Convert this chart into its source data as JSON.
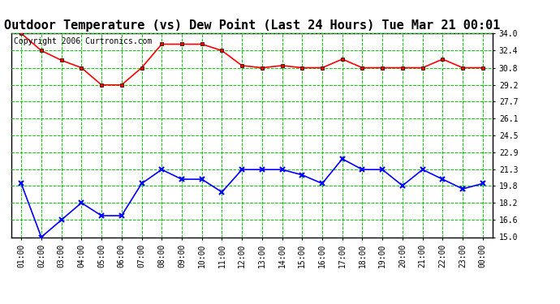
{
  "title": "Outdoor Temperature (vs) Dew Point (Last 24 Hours) Tue Mar 21 00:01",
  "copyright": "Copyright 2006 Curtronics.com",
  "x_labels": [
    "01:00",
    "02:00",
    "03:00",
    "04:00",
    "05:00",
    "06:00",
    "07:00",
    "08:00",
    "09:00",
    "10:00",
    "11:00",
    "12:00",
    "13:00",
    "14:00",
    "15:00",
    "16:00",
    "17:00",
    "18:00",
    "19:00",
    "20:00",
    "21:00",
    "22:00",
    "23:00",
    "00:00"
  ],
  "temp_values": [
    34.0,
    32.4,
    31.5,
    30.8,
    29.2,
    29.2,
    30.8,
    33.0,
    33.0,
    33.0,
    32.4,
    31.0,
    30.8,
    31.0,
    30.8,
    30.8,
    31.6,
    30.8,
    30.8,
    30.8,
    30.8,
    31.6,
    30.8,
    30.8
  ],
  "dew_values": [
    20.0,
    15.0,
    16.6,
    18.2,
    17.0,
    17.0,
    20.0,
    21.3,
    20.4,
    20.4,
    19.2,
    21.3,
    21.3,
    21.3,
    20.8,
    20.0,
    22.3,
    21.3,
    21.3,
    19.8,
    21.3,
    20.4,
    19.5,
    20.0
  ],
  "temp_color": "#ff0000",
  "dew_color": "#0000ff",
  "bg_color": "#ffffff",
  "grid_color": "#00cc00",
  "ylim_min": 15.0,
  "ylim_max": 34.0,
  "yticks": [
    15.0,
    16.6,
    18.2,
    19.8,
    21.3,
    22.9,
    24.5,
    26.1,
    27.7,
    29.2,
    30.8,
    32.4,
    34.0
  ],
  "title_fontsize": 11,
  "copyright_fontsize": 7,
  "tick_fontsize": 7,
  "ytick_fontsize": 7
}
